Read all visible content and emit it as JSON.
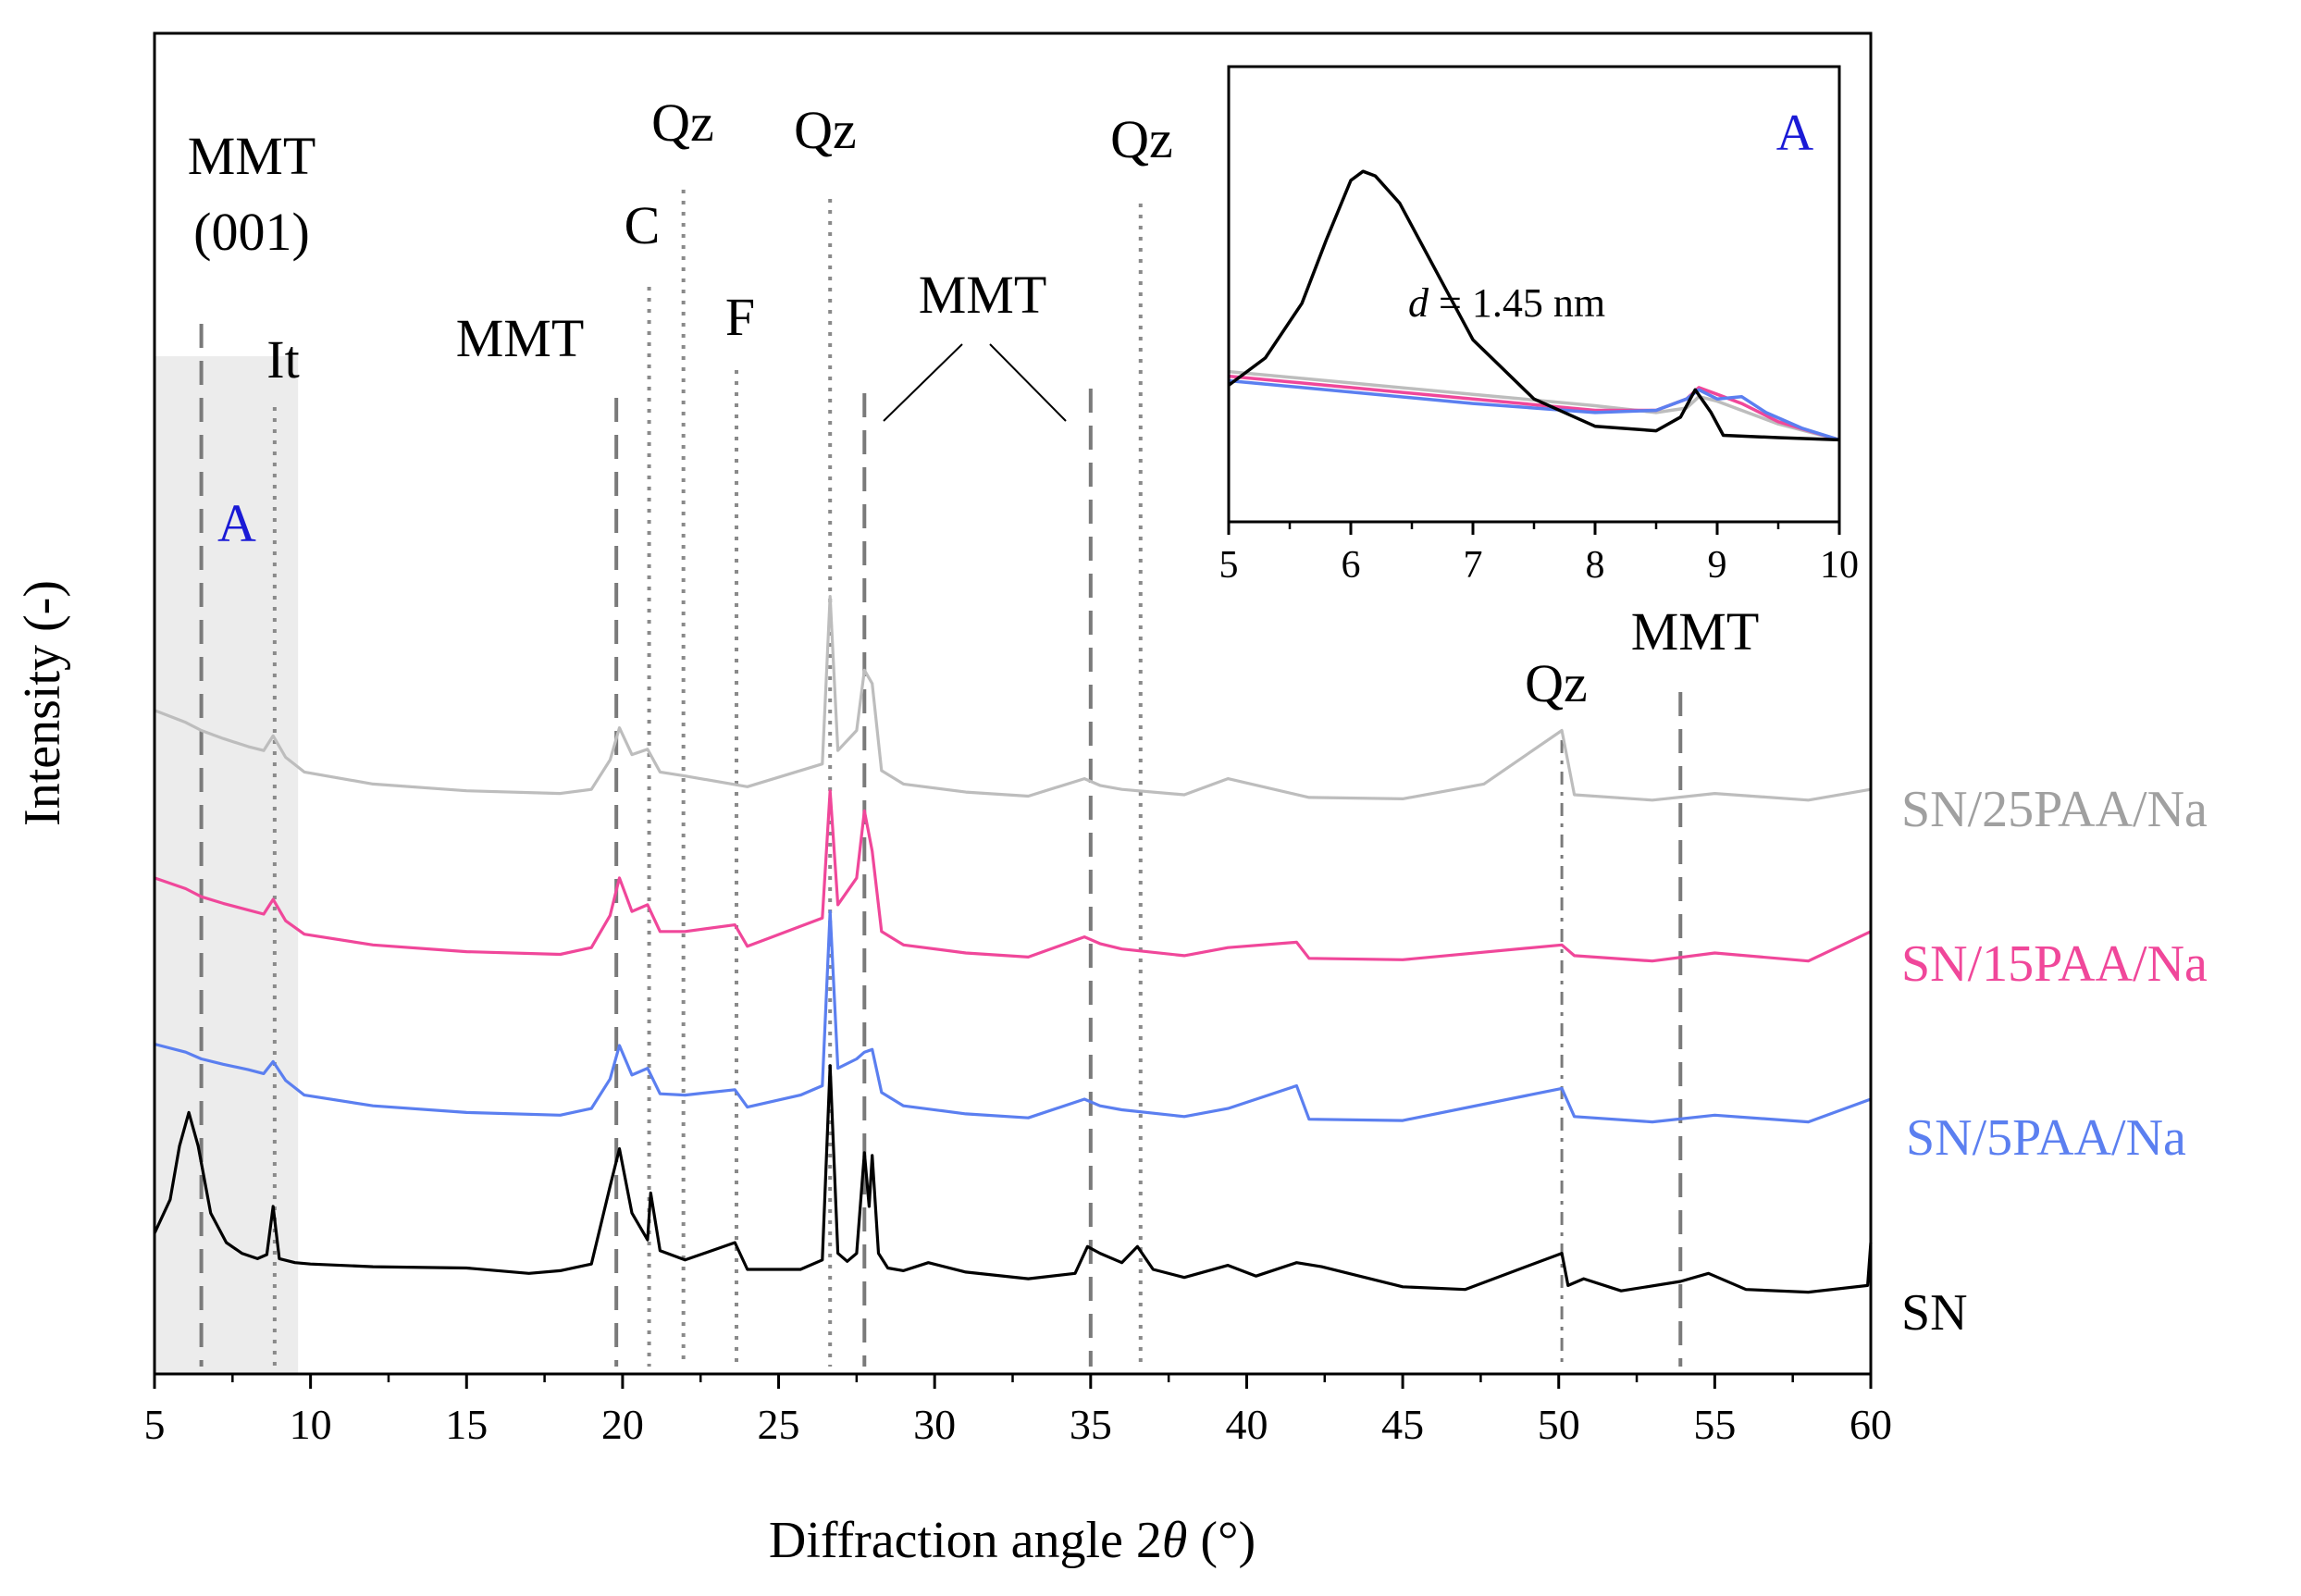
{
  "chart_data": [
    {
      "type": "line",
      "title": "",
      "xlabel": "Diffraction angle 2θ (°)",
      "xlabel_pre": "Diffraction angle 2",
      "xlabel_theta": "θ",
      "xlabel_post": " (°)",
      "ylabel": "Intensity (-)",
      "xlim": [
        5,
        60
      ],
      "ylim": [
        0,
        100
      ],
      "x_ticks": [
        "5",
        "10",
        "15",
        "20",
        "25",
        "30",
        "35",
        "40",
        "45",
        "50",
        "55",
        "60"
      ],
      "y_ticks": [],
      "legend_position": "right, next to each trace",
      "shaded_region": {
        "x_start": 5,
        "x_end": 9.6,
        "label": "A",
        "label_color": "#1a1ad6"
      },
      "series": [
        {
          "name": "SN/25PAA/Na",
          "color": "#bdbdbd",
          "offset": 41,
          "x": [
            5,
            6,
            6.5,
            7.2,
            8.0,
            8.5,
            8.8,
            9.2,
            9.8,
            12,
            15,
            18,
            19.0,
            19.6,
            19.9,
            20.3,
            20.8,
            21.2,
            22,
            24,
            26.4,
            26.65,
            26.9,
            27.5,
            27.75,
            28.0,
            28.3,
            29,
            31,
            33,
            34.8,
            35.3,
            36,
            38,
            39.4,
            42,
            45,
            47.6,
            50.1,
            50.5,
            53,
            55,
            58,
            60
          ],
          "y": [
            8.5,
            7.6,
            7.0,
            6.4,
            5.8,
            5.5,
            6.6,
            5.0,
            3.9,
            3.0,
            2.5,
            2.3,
            2.6,
            4.8,
            7.2,
            5.2,
            5.6,
            3.9,
            3.6,
            2.8,
            4.5,
            17.0,
            5.5,
            7.0,
            11.5,
            10.5,
            4.0,
            3.0,
            2.4,
            2.1,
            3.4,
            2.9,
            2.6,
            2.2,
            3.4,
            2.0,
            1.9,
            3.0,
            7.0,
            2.2,
            1.8,
            2.3,
            1.8,
            2.6
          ]
        },
        {
          "name": "SN/15PAA/Na",
          "color": "#f0479a",
          "offset": 29,
          "x": [
            5,
            6,
            6.5,
            7.2,
            8.0,
            8.5,
            8.8,
            9.2,
            9.8,
            12,
            15,
            18,
            19.0,
            19.6,
            19.9,
            20.3,
            20.8,
            21.2,
            22,
            23.6,
            24,
            26.4,
            26.65,
            26.9,
            27.5,
            27.75,
            28.0,
            28.3,
            29,
            31,
            33,
            34.8,
            35.3,
            36,
            38,
            39.4,
            41.6,
            42,
            45,
            50.1,
            50.5,
            53,
            55,
            58,
            60
          ],
          "y": [
            8.0,
            7.2,
            6.6,
            6.1,
            5.6,
            5.3,
            6.4,
            4.8,
            3.8,
            3.0,
            2.5,
            2.3,
            2.8,
            5.2,
            8.0,
            5.5,
            6.0,
            4.0,
            4.0,
            4.5,
            2.9,
            5.0,
            14.5,
            6.0,
            8.0,
            13.0,
            10.0,
            4.0,
            3.0,
            2.4,
            2.1,
            3.6,
            3.1,
            2.7,
            2.2,
            2.8,
            3.2,
            2.0,
            1.9,
            3.0,
            2.2,
            1.8,
            2.4,
            1.8,
            4.0
          ]
        },
        {
          "name": "SN/5PAA/Na",
          "color": "#5b7ff0",
          "offset": 17,
          "x": [
            5,
            6,
            6.5,
            7.2,
            8.0,
            8.5,
            8.8,
            9.2,
            9.8,
            12,
            15,
            18,
            19.0,
            19.6,
            19.9,
            20.3,
            20.8,
            21.2,
            22,
            23.6,
            24,
            25.7,
            26.4,
            26.65,
            26.9,
            27.5,
            27.75,
            28.0,
            28.3,
            29,
            31,
            33,
            34.8,
            35.3,
            36,
            38,
            39.4,
            41.6,
            42,
            45,
            50.1,
            50.5,
            53,
            55,
            58,
            60
          ],
          "y": [
            7.6,
            7.0,
            6.5,
            6.1,
            5.7,
            5.4,
            6.3,
            4.9,
            3.8,
            3.0,
            2.5,
            2.3,
            2.8,
            5.0,
            7.5,
            5.3,
            5.8,
            3.9,
            3.8,
            4.2,
            2.9,
            3.8,
            4.5,
            17.5,
            5.8,
            6.5,
            7.0,
            7.2,
            4.0,
            3.0,
            2.4,
            2.1,
            3.5,
            3.0,
            2.7,
            2.2,
            2.8,
            4.5,
            2.0,
            1.9,
            4.3,
            2.2,
            1.8,
            2.3,
            1.8,
            3.5
          ]
        },
        {
          "name": "SN",
          "color": "#000000",
          "offset": 5,
          "x": [
            5,
            5.5,
            5.8,
            6.1,
            6.4,
            6.8,
            7.3,
            7.8,
            8.3,
            8.6,
            8.8,
            9.0,
            9.5,
            10,
            12,
            15,
            17,
            18,
            19.0,
            19.6,
            19.9,
            20.3,
            20.8,
            20.9,
            21.2,
            22,
            23.6,
            24,
            25.7,
            26.4,
            26.65,
            26.9,
            27.2,
            27.5,
            27.75,
            27.9,
            28.0,
            28.2,
            28.5,
            29,
            29.8,
            31,
            33,
            34.5,
            34.9,
            35.3,
            36.0,
            36.5,
            37,
            38,
            39.4,
            40.3,
            41.6,
            42.4,
            45,
            47,
            50.1,
            50.3,
            50.8,
            52,
            53.9,
            54.8,
            56,
            58,
            59.9,
            60
          ],
          "y": [
            5.5,
            8.0,
            12.0,
            14.5,
            12.0,
            7.0,
            4.8,
            4.0,
            3.6,
            3.9,
            7.5,
            3.6,
            3.3,
            3.2,
            3.0,
            2.9,
            2.5,
            2.7,
            3.2,
            9.0,
            11.8,
            7.0,
            5.0,
            8.5,
            4.2,
            3.5,
            4.8,
            2.8,
            2.8,
            3.5,
            18.0,
            4.0,
            3.4,
            4.0,
            11.5,
            7.5,
            11.3,
            4.0,
            2.9,
            2.7,
            3.3,
            2.6,
            2.1,
            2.5,
            4.5,
            4.0,
            3.3,
            4.5,
            2.8,
            2.2,
            3.1,
            2.3,
            3.3,
            3.0,
            1.5,
            1.3,
            4.0,
            1.6,
            2.1,
            1.2,
            1.9,
            2.5,
            1.3,
            1.1,
            1.6,
            4.8
          ]
        }
      ],
      "reference_lines": [
        {
          "label": "MMT (001)",
          "x": 6.5,
          "style": "dashed"
        },
        {
          "label": "It",
          "x": 8.85,
          "style": "dotted"
        },
        {
          "label": "MMT",
          "x": 19.8,
          "style": "dashed"
        },
        {
          "label": "C",
          "x": 20.85,
          "style": "dotted"
        },
        {
          "label": "Qz",
          "x": 21.95,
          "style": "dotted"
        },
        {
          "label": "F",
          "x": 23.65,
          "style": "dotted"
        },
        {
          "label": "Qz",
          "x": 26.65,
          "style": "dotted"
        },
        {
          "label": "MMT",
          "x": 27.75,
          "style": "dashed"
        },
        {
          "label": "MMT",
          "x": 35.0,
          "style": "dashed"
        },
        {
          "label": "Qz",
          "x": 36.6,
          "style": "dotted"
        },
        {
          "label": "Qz",
          "x": 50.1,
          "style": "dash-dot"
        },
        {
          "label": "MMT",
          "x": 53.9,
          "style": "dashed"
        }
      ],
      "annotations": {
        "mmt001_line1": "MMT",
        "mmt001_line2": "(001)",
        "it": "It",
        "mmt_a": "MMT",
        "c": "C",
        "qz_1": "Qz",
        "f": "F",
        "qz_2": "Qz",
        "mmt_b": "MMT",
        "qz_3": "Qz",
        "qz_4": "Qz",
        "mmt_c": "MMT",
        "region": "A"
      }
    },
    {
      "type": "line",
      "title": "A",
      "title_color": "#1a1ad6",
      "xlabel": "",
      "ylabel": "",
      "xlim": [
        5,
        10
      ],
      "ylim": [
        0,
        100
      ],
      "x_ticks": [
        "5",
        "6",
        "7",
        "8",
        "9",
        "10"
      ],
      "annotation_pre": "d",
      "annotation_post": " = 1.45 nm",
      "series": [
        {
          "name": "SN/25PAA/Na",
          "color": "#bdbdbd",
          "x": [
            5,
            6,
            7,
            8,
            8.5,
            8.75,
            8.85,
            9.0,
            9.2,
            9.5,
            10
          ],
          "y": [
            33,
            30.5,
            28,
            25.5,
            24,
            25,
            27.5,
            26.5,
            24.5,
            21.5,
            18
          ]
        },
        {
          "name": "SN/15PAA/Na",
          "color": "#f0479a",
          "x": [
            5,
            6,
            7,
            8,
            8.5,
            8.75,
            8.85,
            9.0,
            9.2,
            9.5,
            10
          ],
          "y": [
            32,
            29.5,
            27,
            24.5,
            24.5,
            27,
            29.5,
            28,
            26,
            22,
            18
          ]
        },
        {
          "name": "SN/5PAA/Na",
          "color": "#5b7ff0",
          "x": [
            5,
            6,
            7,
            8,
            8.5,
            8.75,
            8.85,
            9.0,
            9.2,
            9.4,
            9.7,
            10
          ],
          "y": [
            31,
            28.5,
            26,
            24,
            24.5,
            27,
            29,
            27,
            27.5,
            24,
            20.5,
            18
          ]
        },
        {
          "name": "SN",
          "color": "#000000",
          "x": [
            5,
            5.3,
            5.6,
            5.8,
            6.0,
            6.1,
            6.2,
            6.4,
            6.7,
            7.0,
            7.5,
            8.0,
            8.5,
            8.7,
            8.82,
            8.95,
            9.05,
            9.5,
            10
          ],
          "y": [
            30,
            36,
            48,
            62,
            75,
            77,
            76,
            70,
            55,
            40,
            27,
            21,
            20,
            23,
            29,
            24,
            19,
            18.5,
            18
          ]
        }
      ]
    }
  ]
}
